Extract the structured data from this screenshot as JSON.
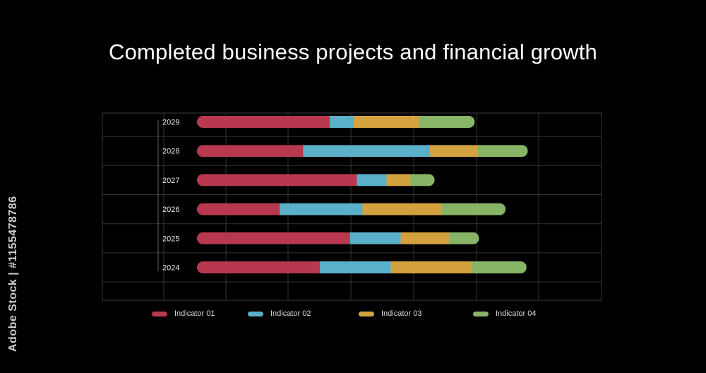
{
  "title": "Completed business projects and financial growth",
  "watermark": "Adobe Stock | #1155478786",
  "chart_data": {
    "type": "bar",
    "orientation": "horizontal",
    "stacked": true,
    "categories": [
      "2029",
      "2028",
      "2027",
      "2026",
      "2025",
      "2024"
    ],
    "series": [
      {
        "name": "Indicator 01",
        "color": "#b8394f",
        "values": [
          21.5,
          17.2,
          25.9,
          13.4,
          24.8,
          19.9
        ]
      },
      {
        "name": "Indicator 02",
        "color": "#5ab0c8",
        "values": [
          3.9,
          20.5,
          4.8,
          13.4,
          8.2,
          11.5
        ]
      },
      {
        "name": "Indicator 03",
        "color": "#d3a23f",
        "values": [
          10.6,
          7.8,
          3.9,
          12.8,
          7.8,
          13.1
        ]
      },
      {
        "name": "Indicator 04",
        "color": "#88b466",
        "values": [
          9.0,
          8.1,
          3.9,
          10.4,
          4.9,
          8.9
        ]
      }
    ],
    "xlim": [
      0,
      70
    ],
    "grid": true,
    "legend_position": "bottom"
  }
}
